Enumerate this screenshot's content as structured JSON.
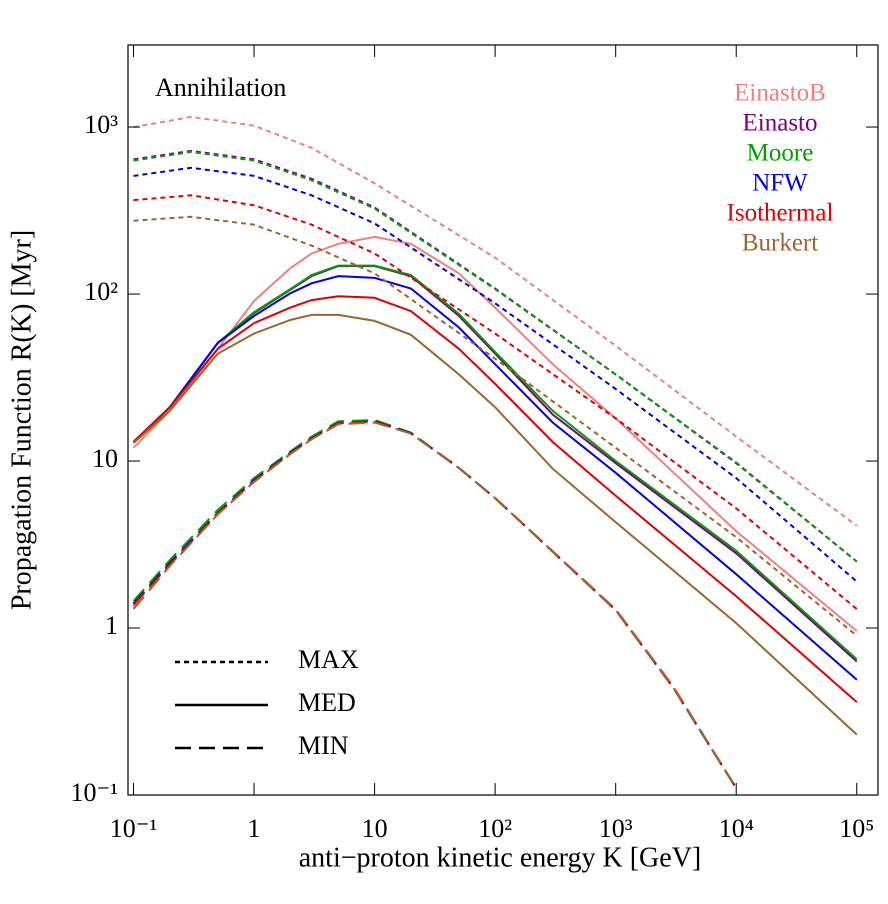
{
  "chart_data": {
    "type": "line",
    "annotation": "Annihilation",
    "x_label": "anti−proton kinetic energy K [GeV]",
    "y_label": "Propagation Function R(K) [Myr]",
    "log_x": true,
    "log_y": true,
    "xlim": [
      0.09,
      150000
    ],
    "ylim": [
      0.1,
      3100
    ],
    "xticks": [
      {
        "value": 0.1,
        "label": "10⁻¹"
      },
      1,
      10,
      {
        "value": 100,
        "label": "10²"
      },
      {
        "value": 1000,
        "label": "10³"
      },
      {
        "value": 10000,
        "label": "10⁴"
      },
      {
        "value": 100000,
        "label": "10⁵"
      }
    ],
    "yticks": [
      {
        "value": 0.1,
        "label": "10⁻¹"
      },
      1,
      10,
      {
        "value": 100,
        "label": "10²"
      },
      {
        "value": 1000,
        "label": "10³"
      }
    ],
    "propagation": [
      {
        "name": "MAX",
        "dash": "5,4",
        "x": [
          0.1,
          0.3,
          1,
          3,
          10,
          100,
          1000,
          10000,
          100000
        ]
      },
      {
        "name": "MED",
        "dash": "none",
        "x": [
          0.1,
          0.2,
          0.5,
          1,
          2,
          3,
          5,
          10,
          20,
          50,
          100,
          300,
          1000,
          10000,
          100000
        ]
      },
      {
        "name": "MIN",
        "dash": "16,8",
        "x": [
          0.1,
          0.2,
          0.5,
          1,
          2,
          3,
          5,
          10,
          20,
          50,
          100,
          1000,
          3000,
          10000
        ]
      }
    ],
    "profiles": [
      {
        "name": "EinastoB",
        "color": "#f08080",
        "MAX": [
          1000,
          1150,
          1020,
          750,
          460,
          165,
          49,
          14,
          4.1
        ],
        "MED": [
          12,
          20,
          47,
          91,
          143,
          175,
          200,
          220,
          200,
          133,
          83,
          38,
          18,
          3.8,
          0.96
        ],
        "MIN": [
          1.35,
          2.4,
          4.8,
          7.6,
          11.1,
          13.6,
          16.8,
          17.3,
          14.7,
          9.1,
          6,
          1.3,
          0.45,
          0.11
        ]
      },
      {
        "name": "Einasto",
        "color": "#800080",
        "MAX": [
          640,
          720,
          640,
          490,
          330,
          108,
          33,
          9.7,
          2.5
        ],
        "MED": [
          13,
          21,
          51,
          77,
          106,
          128,
          147,
          147,
          128,
          74,
          44,
          19,
          9.7,
          2.8,
          0.63
        ],
        "MIN": [
          1.4,
          2.45,
          4.9,
          7.7,
          11.2,
          13.7,
          16.9,
          17.4,
          14.7,
          9.1,
          6,
          1.28,
          0.44,
          0.11
        ]
      },
      {
        "name": "Moore",
        "color": "#00a000",
        "MAX": [
          630,
          710,
          630,
          480,
          325,
          107,
          33,
          9.8,
          2.5
        ],
        "MED": [
          13,
          21,
          51,
          78,
          107,
          130,
          148,
          148,
          130,
          76,
          45,
          20,
          10,
          2.9,
          0.65
        ],
        "MIN": [
          1.45,
          2.55,
          5.1,
          7.9,
          11.4,
          14,
          17.3,
          17.6,
          14.8,
          9.1,
          6,
          1.28,
          0.44,
          0.11
        ]
      },
      {
        "name": "NFW",
        "color": "#0000e0",
        "MAX": [
          510,
          570,
          510,
          390,
          265,
          88,
          27,
          7.9,
          1.9
        ],
        "MED": [
          13,
          21,
          51,
          74,
          101,
          116,
          128,
          125,
          108,
          63,
          38,
          17,
          8.5,
          2.1,
          0.49
        ],
        "MIN": [
          1.4,
          2.45,
          4.9,
          7.7,
          11.2,
          13.7,
          16.9,
          17.3,
          14.7,
          9.1,
          6,
          1.28,
          0.44,
          0.11
        ]
      },
      {
        "name": "Isothermal",
        "color": "#e00000",
        "MAX": [
          365,
          390,
          340,
          260,
          175,
          58,
          18,
          5.2,
          1.3
        ],
        "MED": [
          13,
          21,
          47,
          67,
          83,
          92,
          97,
          95,
          79,
          47,
          29,
          13,
          6.2,
          1.55,
          0.36
        ],
        "MIN": [
          1.38,
          2.4,
          4.85,
          7.6,
          11.1,
          13.6,
          16.8,
          17.2,
          14.6,
          9.1,
          6,
          1.28,
          0.44,
          0.11
        ]
      },
      {
        "name": "Burkert",
        "color": "#a0642d",
        "MAX": [
          275,
          290,
          260,
          195,
          133,
          41,
          12,
          3.5,
          0.9
        ],
        "MED": [
          12.8,
          20,
          44,
          58,
          70,
          75,
          75,
          69,
          57,
          33,
          21,
          9,
          4.3,
          1.07,
          0.23
        ],
        "MIN": [
          1.3,
          2.35,
          4.8,
          7.5,
          11,
          13.5,
          16.6,
          17,
          14.6,
          9.1,
          6,
          1.28,
          0.44,
          0.11
        ]
      }
    ]
  }
}
